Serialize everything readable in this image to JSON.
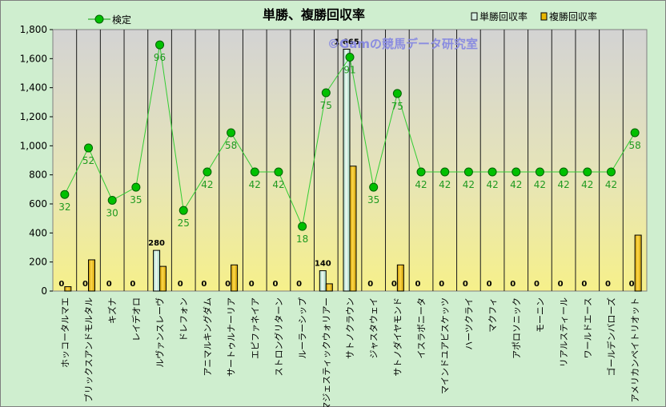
{
  "chart_data": {
    "type": "bar",
    "title": "単勝、複勝回収率",
    "watermark": "©Gamの競馬データ研究室",
    "ylim": [
      0,
      1800
    ],
    "yticks": [
      "0",
      "200",
      "400",
      "600",
      "800",
      "1,000",
      "1,200",
      "1,400",
      "1,600",
      "1,800"
    ],
    "categories": [
      "ホッコータルマエ",
      "ブリックスアンドモルタル",
      "キズナ",
      "レイデオロ",
      "ルヴァンスレーヴ",
      "ドレフォン",
      "アニマルキングダム",
      "サートゥルナーリア",
      "エピファネイア",
      "ストロングリターン",
      "ルーラーシップ",
      "マジェスティックウォリアー",
      "サトノクラウン",
      "ジャスタウェイ",
      "サトノダイヤモンド",
      "イスラボニータ",
      "マインドユアビスケッツ",
      "ハーツクライ",
      "マクフィ",
      "アポロソニック",
      "モーニン",
      "リアルスティール",
      "ワールドエース",
      "ゴールデンバローズ",
      "アメリカンペイトリオット"
    ],
    "series": [
      {
        "name": "単勝回収率",
        "type": "bar",
        "color": "#d6eee0",
        "values": [
          0,
          0,
          0,
          0,
          280,
          0,
          0,
          0,
          0,
          0,
          0,
          140,
          1665,
          0,
          0,
          0,
          0,
          0,
          0,
          0,
          0,
          0,
          0,
          0,
          0
        ],
        "data_labels": [
          "0",
          "0",
          "0",
          "0",
          "280",
          "0",
          "0",
          "0",
          "0",
          "0",
          "0",
          "140",
          "1,665",
          "0",
          "0",
          "0",
          "0",
          "0",
          "0",
          "0",
          "0",
          "0",
          "0",
          "0",
          "0"
        ]
      },
      {
        "name": "複勝回収率",
        "type": "bar",
        "color": "#e8b800",
        "values": [
          30,
          215,
          0,
          0,
          170,
          0,
          0,
          180,
          0,
          0,
          0,
          50,
          860,
          0,
          180,
          0,
          0,
          0,
          0,
          0,
          0,
          0,
          0,
          0,
          385
        ]
      },
      {
        "name": "検定",
        "type": "line",
        "color": "#00a000",
        "values": [
          665,
          985,
          625,
          715,
          1695,
          555,
          820,
          1090,
          820,
          820,
          445,
          1365,
          1610,
          715,
          1360,
          820,
          820,
          820,
          820,
          820,
          820,
          820,
          820,
          820,
          1090
        ],
        "data_labels": [
          "32",
          "52",
          "30",
          "35",
          "96",
          "25",
          "42",
          "58",
          "42",
          "42",
          "18",
          "75",
          "91",
          "35",
          "75",
          "42",
          "42",
          "42",
          "42",
          "42",
          "42",
          "42",
          "42",
          "42",
          "58"
        ]
      }
    ],
    "legend": [
      "検定",
      "単勝回収率",
      "複勝回収率"
    ],
    "legend_position": "top",
    "grid": "vertical"
  }
}
